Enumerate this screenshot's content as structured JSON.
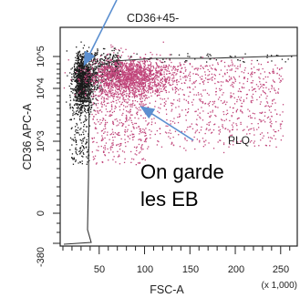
{
  "chart_data": {
    "type": "scatter",
    "title": "CD36+45-",
    "xlabel": "FSC-A",
    "ylabel": "CD36 APC-A",
    "x_scale_note": "(x 1,000)",
    "x_ticks": [
      "50",
      "100",
      "150",
      "200",
      "250"
    ],
    "x_tick_values": [
      50,
      100,
      150,
      200,
      250
    ],
    "xlim": [
      0,
      262
    ],
    "y_scale": "log",
    "y_ticks": [
      "10^5",
      "10^4",
      "10^3",
      "0",
      "-380"
    ],
    "y_tick_values": [
      100000,
      10000,
      1000,
      0,
      -380
    ],
    "gate_label": "PLQ",
    "annotation": "On garde\nles EB",
    "annotation_lines": [
      "On garde",
      "les EB"
    ],
    "series": [
      {
        "name": "",
        "color": "#1a1a1a"
      },
      {
        "name": "",
        "color": "#c0457a"
      }
    ],
    "arrow_color": "#5b8fd0",
    "gate_color": "#333333"
  }
}
